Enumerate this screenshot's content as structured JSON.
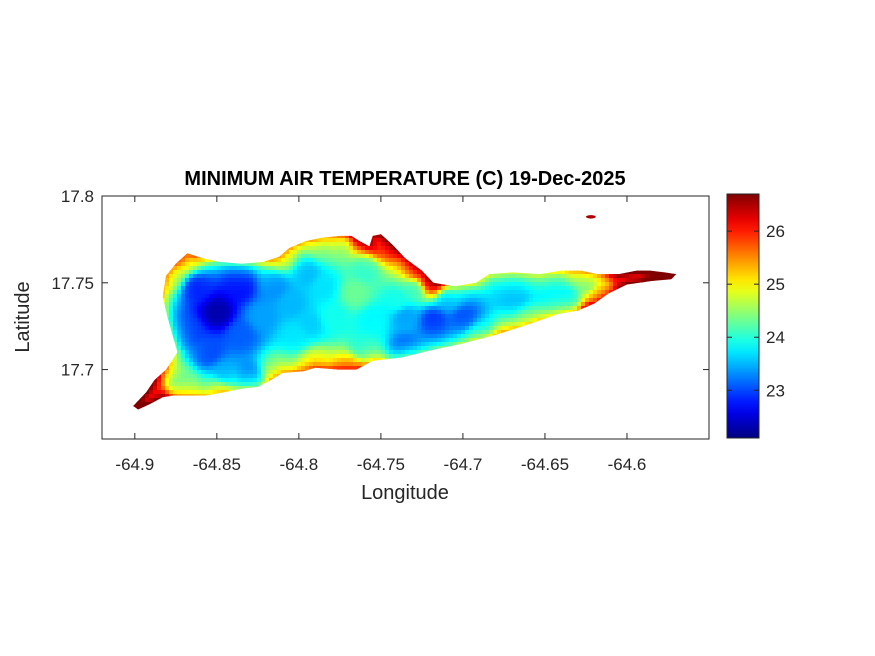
{
  "chart_data": {
    "type": "heatmap",
    "title": "MINIMUM AIR TEMPERATURE (C) 19-Dec-2025",
    "xlabel": "Longitude",
    "ylabel": "Latitude",
    "xlim": [
      -64.92,
      -64.55
    ],
    "ylim": [
      17.66,
      17.8
    ],
    "x_ticks": [
      -64.9,
      -64.85,
      -64.8,
      -64.75,
      -64.7,
      -64.65,
      -64.6
    ],
    "x_tick_labels": [
      "-64.9",
      "-64.85",
      "-64.8",
      "-64.75",
      "-64.7",
      "-64.65",
      "-64.6"
    ],
    "y_ticks": [
      17.7,
      17.75,
      17.8
    ],
    "y_tick_labels": [
      "17.7",
      "17.75",
      "17.8"
    ],
    "colorbar": {
      "colormap": "jet",
      "limits": [
        22.1,
        26.7
      ],
      "ticks": [
        23,
        24,
        25,
        26
      ],
      "tick_labels": [
        "23",
        "24",
        "25",
        "26"
      ]
    },
    "colors": {
      "background": "#ffffff",
      "axis": "#262626"
    },
    "region_outline": [
      [
        -64.901,
        17.679
      ],
      [
        -64.893,
        17.687
      ],
      [
        -64.888,
        17.694
      ],
      [
        -64.881,
        17.7
      ],
      [
        -64.874,
        17.71
      ],
      [
        -64.877,
        17.72
      ],
      [
        -64.88,
        17.73
      ],
      [
        -64.883,
        17.742
      ],
      [
        -64.881,
        17.754
      ],
      [
        -64.875,
        17.761
      ],
      [
        -64.868,
        17.767
      ],
      [
        -64.858,
        17.764
      ],
      [
        -64.848,
        17.762
      ],
      [
        -64.835,
        17.761
      ],
      [
        -64.822,
        17.762
      ],
      [
        -64.812,
        17.765
      ],
      [
        -64.806,
        17.77
      ],
      [
        -64.796,
        17.774
      ],
      [
        -64.786,
        17.776
      ],
      [
        -64.775,
        17.777
      ],
      [
        -64.768,
        17.777
      ],
      [
        -64.763,
        17.774
      ],
      [
        -64.757,
        17.771
      ],
      [
        -64.755,
        17.777
      ],
      [
        -64.75,
        17.778
      ],
      [
        -64.743,
        17.772
      ],
      [
        -64.735,
        17.764
      ],
      [
        -64.725,
        17.757
      ],
      [
        -64.718,
        17.75
      ],
      [
        -64.705,
        17.748
      ],
      [
        -64.692,
        17.75
      ],
      [
        -64.684,
        17.755
      ],
      [
        -64.67,
        17.756
      ],
      [
        -64.653,
        17.755
      ],
      [
        -64.64,
        17.757
      ],
      [
        -64.628,
        17.757
      ],
      [
        -64.618,
        17.755
      ],
      [
        -64.605,
        17.755
      ],
      [
        -64.594,
        17.757
      ],
      [
        -64.586,
        17.757
      ],
      [
        -64.577,
        17.756
      ],
      [
        -64.57,
        17.755
      ],
      [
        -64.573,
        17.752
      ],
      [
        -64.585,
        17.751
      ],
      [
        -64.6,
        17.749
      ],
      [
        -64.611,
        17.744
      ],
      [
        -64.62,
        17.738
      ],
      [
        -64.63,
        17.734
      ],
      [
        -64.642,
        17.732
      ],
      [
        -64.66,
        17.726
      ],
      [
        -64.68,
        17.72
      ],
      [
        -64.7,
        17.715
      ],
      [
        -64.72,
        17.711
      ],
      [
        -64.737,
        17.707
      ],
      [
        -64.755,
        17.705
      ],
      [
        -64.765,
        17.7
      ],
      [
        -64.776,
        17.7
      ],
      [
        -64.79,
        17.701
      ],
      [
        -64.797,
        17.699
      ],
      [
        -64.81,
        17.698
      ],
      [
        -64.817,
        17.694
      ],
      [
        -64.825,
        17.69
      ],
      [
        -64.835,
        17.689
      ],
      [
        -64.845,
        17.687
      ],
      [
        -64.857,
        17.685
      ],
      [
        -64.868,
        17.685
      ],
      [
        -64.877,
        17.685
      ],
      [
        -64.883,
        17.684
      ],
      [
        -64.891,
        17.68
      ],
      [
        -64.898,
        17.677
      ]
    ],
    "extra_patches": [
      {
        "center": [
          -64.622,
          17.788
        ],
        "rx": 0.003,
        "ry": 0.001,
        "value": 26.5
      }
    ],
    "control_points": [
      [
        -64.85,
        17.733,
        22.3
      ],
      [
        -64.836,
        17.748,
        22.7
      ],
      [
        -64.862,
        17.747,
        22.8
      ],
      [
        -64.867,
        17.722,
        22.9
      ],
      [
        -64.855,
        17.71,
        23.0
      ],
      [
        -64.835,
        17.72,
        23.1
      ],
      [
        -64.845,
        17.698,
        23.4
      ],
      [
        -64.83,
        17.696,
        23.2
      ],
      [
        -64.815,
        17.748,
        23.3
      ],
      [
        -64.805,
        17.738,
        23.5
      ],
      [
        -64.795,
        17.756,
        23.5
      ],
      [
        -64.785,
        17.748,
        23.7
      ],
      [
        -64.78,
        17.73,
        23.9
      ],
      [
        -64.802,
        17.72,
        23.7
      ],
      [
        -64.76,
        17.758,
        24.0
      ],
      [
        -64.766,
        17.744,
        24.3
      ],
      [
        -64.755,
        17.728,
        23.8
      ],
      [
        -64.735,
        17.73,
        23.4
      ],
      [
        -64.735,
        17.712,
        23.0
      ],
      [
        -64.718,
        17.728,
        22.9
      ],
      [
        -64.7,
        17.73,
        23.0
      ],
      [
        -64.708,
        17.74,
        23.4
      ],
      [
        -64.69,
        17.72,
        23.6
      ],
      [
        -64.668,
        17.742,
        23.5
      ],
      [
        -64.66,
        17.728,
        24.0
      ],
      [
        -64.65,
        17.748,
        23.7
      ],
      [
        -64.638,
        17.74,
        23.7
      ],
      [
        -64.625,
        17.752,
        24.2
      ],
      [
        -64.615,
        17.742,
        24.8
      ],
      [
        -64.618,
        17.732,
        25.4
      ],
      [
        -64.6,
        17.751,
        25.6
      ],
      [
        -64.58,
        17.755,
        26.0
      ],
      [
        -64.871,
        17.763,
        24.6
      ],
      [
        -64.878,
        17.755,
        24.3
      ],
      [
        -64.892,
        17.685,
        25.6
      ],
      [
        -64.898,
        17.679,
        26.0
      ],
      [
        -64.79,
        17.704,
        24.6
      ],
      [
        -64.77,
        17.701,
        24.9
      ],
      [
        -64.76,
        17.775,
        25.3
      ],
      [
        -64.748,
        17.771,
        25.6
      ],
      [
        -64.728,
        17.757,
        25.3
      ],
      [
        -64.72,
        17.75,
        25.5
      ],
      [
        -64.81,
        17.765,
        24.3
      ],
      [
        -64.787,
        17.771,
        24.2
      ],
      [
        -64.778,
        17.772,
        24.3
      ],
      [
        -64.675,
        17.718,
        24.2
      ],
      [
        -64.73,
        17.746,
        24.0
      ],
      [
        -64.815,
        17.7,
        24.2
      ],
      [
        -64.85,
        17.688,
        24.1
      ],
      [
        -64.87,
        17.692,
        24.2
      ],
      [
        -64.74,
        17.74,
        23.9
      ],
      [
        -64.76,
        17.712,
        23.9
      ],
      [
        -64.823,
        17.73,
        23.4
      ],
      [
        -64.793,
        17.726,
        23.6
      ]
    ]
  }
}
